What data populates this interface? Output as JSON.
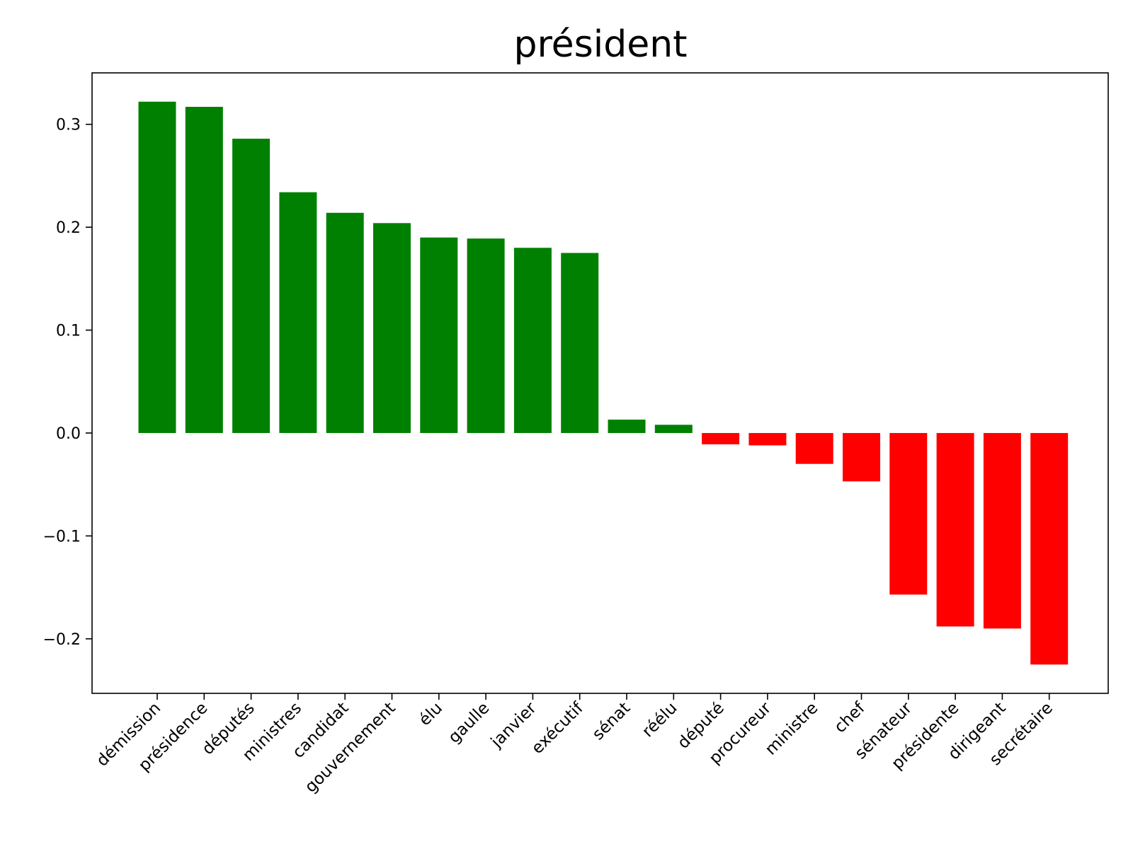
{
  "chart_data": {
    "type": "bar",
    "title": "président",
    "xlabel": "",
    "ylabel": "",
    "categories": [
      "démission",
      "présidence",
      "députés",
      "ministres",
      "candidat",
      "gouvernement",
      "élu",
      "gaulle",
      "janvier",
      "exécutif",
      "sénat",
      "réélu",
      "député",
      "procureur",
      "ministre",
      "chef",
      "sénateur",
      "présidente",
      "dirigeant",
      "secrétaire"
    ],
    "values": [
      0.322,
      0.317,
      0.286,
      0.234,
      0.214,
      0.204,
      0.19,
      0.189,
      0.18,
      0.175,
      0.013,
      0.008,
      -0.011,
      -0.012,
      -0.03,
      -0.047,
      -0.157,
      -0.188,
      -0.19,
      -0.225
    ],
    "ylim": [
      -0.253,
      0.35
    ],
    "yticks": [
      -0.2,
      -0.1,
      0.0,
      0.1,
      0.2,
      0.3
    ],
    "ytick_labels": [
      "−0.2",
      "−0.1",
      "0.0",
      "0.1",
      "0.2",
      "0.3"
    ],
    "colors": {
      "positive": "#008000",
      "negative": "#ff0000"
    },
    "grid": false,
    "legend": "none"
  }
}
